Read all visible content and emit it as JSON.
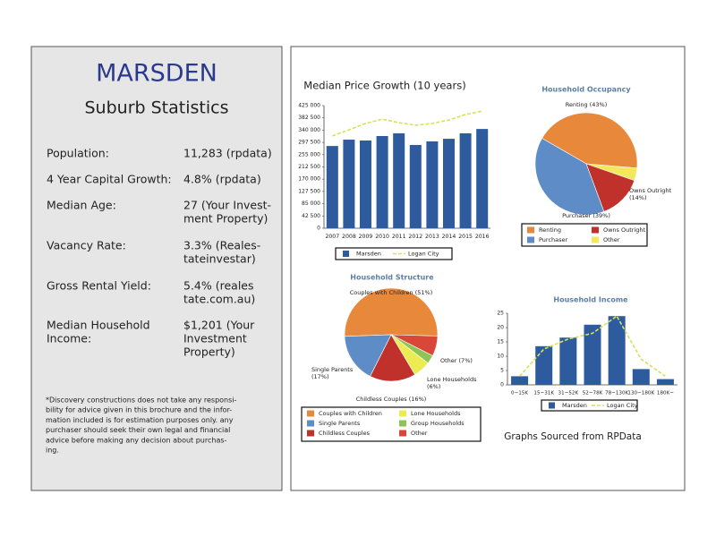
{
  "sidebar": {
    "title": "MARSDEN",
    "subtitle": "Suburb Statistics",
    "rows": [
      {
        "label": [
          "Population:"
        ],
        "value": [
          "11,283 (rpdata)"
        ]
      },
      {
        "label": [
          "4 Year Capital Growth:"
        ],
        "value": [
          "4.8% (rpdata)"
        ]
      },
      {
        "label": [
          "Median Age:"
        ],
        "value": [
          "27 (Your Invest-",
          "ment Property)"
        ]
      },
      {
        "label": [
          "Vacancy Rate:"
        ],
        "value": [
          "3.3% (Reales-",
          "tateinvestar)"
        ]
      },
      {
        "label": [
          "Gross Rental Yield:"
        ],
        "value": [
          "5.4% (reales",
          "tate.com.au)"
        ]
      },
      {
        "label": [
          "Median Household",
          "Income:"
        ],
        "value": [
          "$1,201 (Your",
          "Investment",
          "Property)"
        ]
      }
    ],
    "footnote": [
      "*Discovery constructions does not take any responsi-",
      "bility for advice given in this brochure and the infor-",
      "mation included is for estimation purposes only. any",
      "purchaser should seek their own legal and financial",
      "advice before making any decision about purchas-",
      "ing."
    ]
  },
  "chart_data": [
    {
      "type": "bar",
      "title": "Median Price Growth (10 years)",
      "categories": [
        "2007",
        "2008",
        "2009",
        "2010",
        "2011",
        "2012",
        "2013",
        "2014",
        "2015",
        "2016"
      ],
      "series": [
        {
          "name": "Marsden",
          "color": "#2e5b9e",
          "values": [
            285000,
            307000,
            304000,
            319500,
            329000,
            288500,
            301000,
            310000,
            329000,
            344000
          ]
        },
        {
          "name": "Logan City",
          "type": "line",
          "dashed": true,
          "color": "#d6e25a",
          "values": [
            320000,
            341000,
            363000,
            378000,
            366000,
            357000,
            363000,
            375000,
            394000,
            406000
          ]
        }
      ],
      "ylim": [
        0,
        425000
      ],
      "yticks": [
        0,
        {
          "value": 42500,
          "label": "42 500"
        },
        {
          "value": 85000,
          "label": "85 000"
        },
        {
          "value": 127500,
          "label": "127 500"
        },
        {
          "value": 170000,
          "label": "170 000"
        },
        {
          "value": 212500,
          "label": "212 500"
        },
        {
          "value": 255000,
          "label": "255 000"
        },
        {
          "value": 297500,
          "label": "297 500"
        },
        {
          "value": 340000,
          "label": "340 000"
        },
        {
          "value": 382500,
          "label": "382 500"
        },
        {
          "value": 425000,
          "label": "425 000"
        }
      ]
    },
    {
      "type": "pie",
      "title": "Household Occupancy",
      "categories": [
        "Renting",
        "Other",
        "Owns Outright",
        "Purchaser"
      ],
      "values": [
        43,
        4,
        14,
        39
      ],
      "value_labels": [
        "Renting (43%)",
        null,
        "Owns Outright (14%)",
        "Purchaser (39%)"
      ],
      "colors": [
        "#e8883a",
        "#f2e85a",
        "#c0312b",
        "#5d8cc7"
      ]
    },
    {
      "type": "pie",
      "title": "Household Structure",
      "categories": [
        "Couples with Children",
        "Other",
        "Group Households",
        "Lone Households",
        "Childless Couples",
        "Single Parents"
      ],
      "values": [
        51,
        7,
        3,
        6,
        16,
        17
      ],
      "value_labels": [
        "Couples with Children (51%)",
        "Other (7%)",
        null,
        "Lone Households (6%)",
        "Childless Couples (16%)",
        "Single Parents (17%)"
      ],
      "colors": [
        "#e8883a",
        "#d8473a",
        "#8dc454",
        "#ecec52",
        "#c0312b",
        "#5d8cc7"
      ]
    },
    {
      "type": "bar",
      "title": "Household Income",
      "categories": [
        "0~15K",
        "15~31K",
        "31~52K",
        "52~78K",
        "78~130K",
        "130~180K",
        "180K~"
      ],
      "series": [
        {
          "name": "Marsden",
          "color": "#2e5b9e",
          "values": [
            3,
            13.5,
            16.5,
            21,
            24,
            5.5,
            2
          ]
        },
        {
          "name": "Logan City",
          "type": "line",
          "dashed": true,
          "color": "#d6e25a",
          "values": [
            3,
            12.5,
            16,
            18,
            24,
            9,
            3
          ]
        }
      ],
      "ylim": [
        0,
        25
      ],
      "yticks": [
        0,
        5,
        10,
        15,
        20,
        25
      ]
    }
  ],
  "source_note": "Graphs Sourced from RPData"
}
